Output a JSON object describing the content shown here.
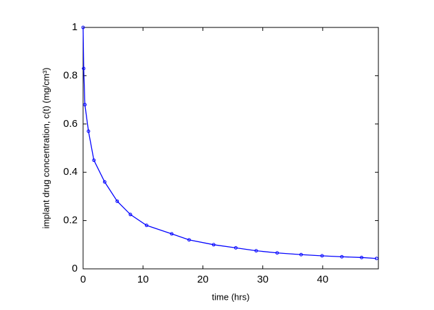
{
  "chart_data": {
    "type": "line",
    "x_label": "time (hrs)",
    "y_label": "implant drug concentration, c(t) (mg/cm³)",
    "x": [
      0,
      0.1,
      0.3,
      0.9,
      1.8,
      3.6,
      5.7,
      7.9,
      10.6,
      14.8,
      17.7,
      21.8,
      25.5,
      28.9,
      32.4,
      36.4,
      39.9,
      43.2,
      46.5,
      49.0
    ],
    "series": [
      {
        "color": "#0000ff",
        "values": [
          1.0,
          0.83,
          0.68,
          0.57,
          0.45,
          0.36,
          0.28,
          0.225,
          0.18,
          0.145,
          0.12,
          0.1,
          0.087,
          0.075,
          0.066,
          0.059,
          0.054,
          0.05,
          0.047,
          0.043
        ]
      }
    ],
    "xlim": [
      0,
      49.3
    ],
    "xticks": [
      0,
      10,
      20,
      30,
      40
    ],
    "ylim": [
      0,
      1
    ],
    "yticks": [
      0,
      0.2,
      0.4,
      0.6,
      0.8,
      1
    ],
    "grid": false
  }
}
